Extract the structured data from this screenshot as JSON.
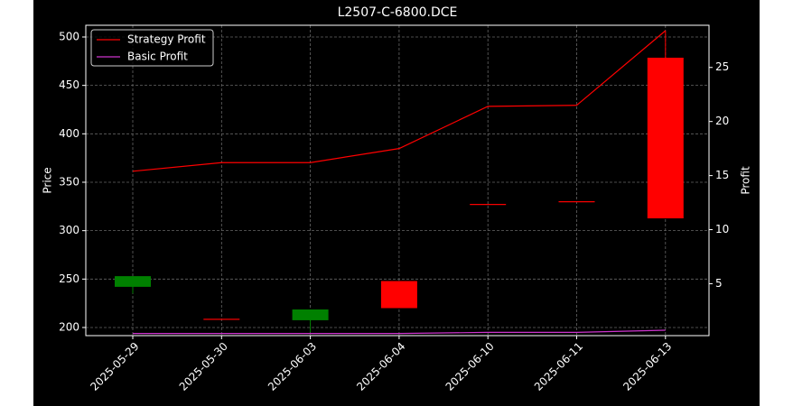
{
  "chart_data": {
    "type": "candlestick",
    "title": "L2507-C-6800.DCE",
    "ylabel": "Price",
    "y2label": "Profit",
    "categories": [
      "2025-05-29",
      "2025-05-30",
      "2025-06-03",
      "2025-06-04",
      "2025-06-10",
      "2025-06-11",
      "2025-06-13"
    ],
    "candles": {
      "open": [
        242,
        209,
        207.5,
        248,
        327.6,
        330.4,
        478.6
      ],
      "high": [
        253,
        209,
        218.6,
        248,
        327.6,
        330.4,
        506
      ],
      "low": [
        235,
        209,
        195,
        220,
        327.6,
        330.4,
        312.7
      ],
      "close": [
        253,
        209,
        218.6,
        220,
        327.6,
        330.4,
        312.7
      ],
      "up_color": "#008000",
      "down_color": "#ff0000"
    },
    "series": [
      {
        "name": "Strategy Profit",
        "color": "#ff0000",
        "axis": "y2",
        "values": [
          15.4,
          16.2,
          16.2,
          17.5,
          21.4,
          21.5,
          28.4
        ]
      },
      {
        "name": "Basic Profit",
        "color": "#cc33cc",
        "axis": "y2",
        "values": [
          0.4,
          0.4,
          0.4,
          0.4,
          0.5,
          0.5,
          0.7
        ]
      }
    ],
    "ylim": [
      191.6,
      512.1
    ],
    "yticks": [
      200,
      250,
      300,
      350,
      400,
      450,
      500
    ],
    "y2lim": [
      0.2,
      28.9
    ],
    "y2ticks": [
      5,
      10,
      15,
      20,
      25
    ],
    "grid": true,
    "legend": "upper left"
  }
}
